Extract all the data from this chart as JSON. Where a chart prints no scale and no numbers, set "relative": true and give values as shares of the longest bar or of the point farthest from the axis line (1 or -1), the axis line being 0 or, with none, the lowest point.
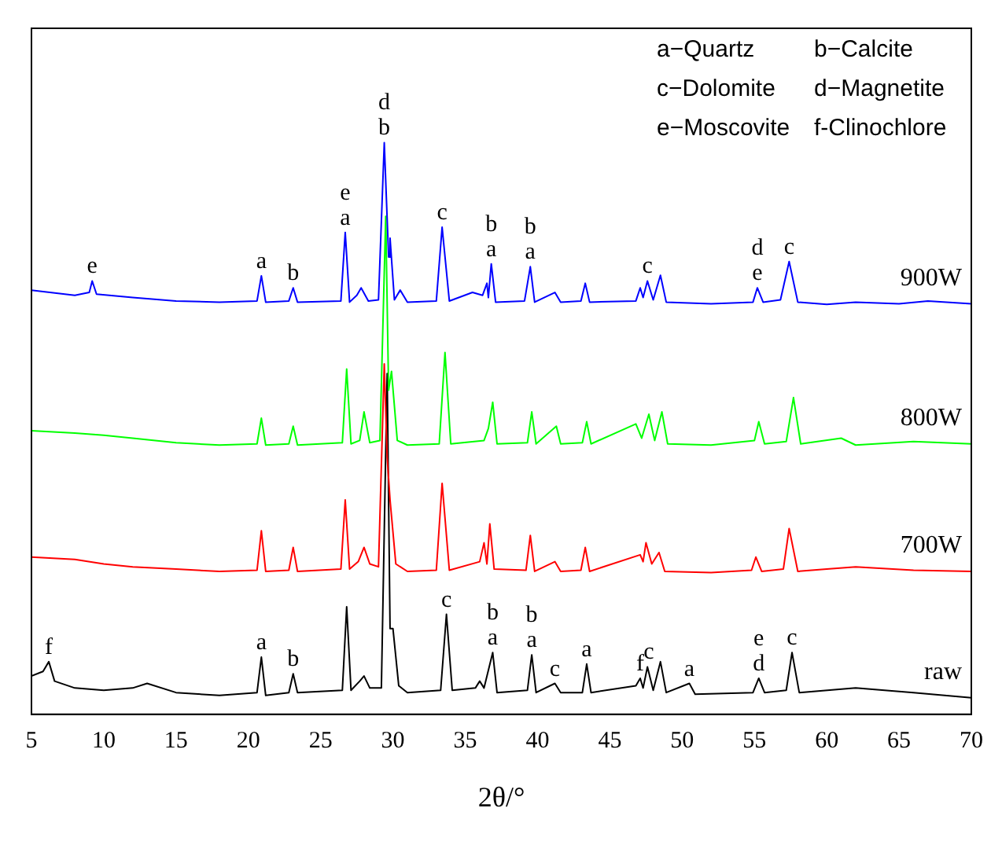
{
  "chart_data": {
    "type": "line",
    "relative": true,
    "xlabel": "2θ/°",
    "xlim": [
      5,
      70
    ],
    "xticks": [
      5,
      10,
      15,
      20,
      25,
      30,
      35,
      40,
      45,
      50,
      55,
      60,
      65,
      70
    ],
    "grid": false,
    "legend": false,
    "marker": "none",
    "line_style": "solid",
    "series": [
      {
        "name": "900W",
        "color": "#0000ff",
        "x": [
          5,
          8,
          9.0,
          9.2,
          9.5,
          12,
          15,
          18,
          20.6,
          20.9,
          21.2,
          22.8,
          23.1,
          23.4,
          26.4,
          26.7,
          27.0,
          27.5,
          27.8,
          28.3,
          29.0,
          29.4,
          29.7,
          29.8,
          30.1,
          30.5,
          31,
          33.0,
          33.4,
          33.9,
          35.5,
          36.2,
          36.5,
          36.6,
          36.8,
          37.1,
          39.1,
          39.5,
          39.8,
          41.2,
          41.6,
          43.0,
          43.3,
          43.6,
          46.8,
          47.1,
          47.3,
          47.6,
          48.0,
          48.5,
          48.9,
          52,
          54.9,
          55.2,
          55.6,
          56.8,
          57.4,
          58.0,
          60,
          62,
          65,
          67,
          70
        ],
        "values": [
          0.742,
          0.733,
          0.738,
          0.758,
          0.735,
          0.729,
          0.723,
          0.721,
          0.723,
          0.767,
          0.721,
          0.723,
          0.746,
          0.721,
          0.723,
          0.843,
          0.721,
          0.733,
          0.746,
          0.723,
          0.725,
          1.0,
          0.8,
          0.833,
          0.725,
          0.742,
          0.721,
          0.723,
          0.852,
          0.723,
          0.738,
          0.733,
          0.754,
          0.729,
          0.788,
          0.721,
          0.723,
          0.783,
          0.721,
          0.738,
          0.721,
          0.723,
          0.754,
          0.721,
          0.723,
          0.746,
          0.729,
          0.758,
          0.725,
          0.768,
          0.721,
          0.718,
          0.721,
          0.746,
          0.721,
          0.725,
          0.792,
          0.721,
          0.717,
          0.721,
          0.718,
          0.723,
          0.718
        ]
      },
      {
        "name": "800W",
        "color": "#00ff00",
        "x": [
          5,
          8,
          10,
          12,
          15,
          18,
          20.6,
          20.9,
          21.2,
          22.8,
          23.1,
          23.4,
          26.5,
          26.8,
          27.1,
          27.7,
          28.0,
          28.4,
          29.1,
          29.5,
          29.7,
          29.9,
          30.3,
          31,
          33.2,
          33.6,
          34.0,
          36.3,
          36.6,
          36.9,
          37.2,
          39.3,
          39.6,
          39.9,
          41.3,
          41.6,
          43.1,
          43.4,
          43.7,
          46.8,
          47.2,
          47.7,
          48.1,
          48.6,
          49.0,
          52,
          55.0,
          55.3,
          55.7,
          57.2,
          57.7,
          58.2,
          61,
          62,
          66,
          70
        ],
        "values": [
          0.496,
          0.492,
          0.488,
          0.483,
          0.475,
          0.471,
          0.473,
          0.518,
          0.471,
          0.473,
          0.504,
          0.471,
          0.475,
          0.604,
          0.473,
          0.479,
          0.529,
          0.475,
          0.479,
          0.871,
          0.567,
          0.6,
          0.479,
          0.471,
          0.473,
          0.633,
          0.473,
          0.479,
          0.5,
          0.546,
          0.473,
          0.475,
          0.529,
          0.473,
          0.504,
          0.473,
          0.475,
          0.512,
          0.473,
          0.508,
          0.483,
          0.525,
          0.479,
          0.529,
          0.473,
          0.471,
          0.479,
          0.512,
          0.473,
          0.477,
          0.554,
          0.473,
          0.483,
          0.471,
          0.477,
          0.473
        ]
      },
      {
        "name": "700W",
        "color": "#ff0000",
        "x": [
          5,
          8,
          10,
          12,
          15,
          18,
          20.6,
          20.9,
          21.2,
          22.8,
          23.1,
          23.4,
          26.4,
          26.7,
          27.0,
          27.6,
          28.0,
          28.4,
          29.0,
          29.4,
          29.6,
          29.8,
          30.2,
          31,
          33.0,
          33.4,
          33.9,
          36.0,
          36.3,
          36.5,
          36.7,
          37.0,
          39.2,
          39.5,
          39.8,
          41.2,
          41.6,
          43.0,
          43.3,
          43.6,
          47.1,
          47.3,
          47.5,
          47.9,
          48.4,
          48.8,
          52,
          54.8,
          55.1,
          55.5,
          57.0,
          57.4,
          58.0,
          60,
          62,
          66,
          70
        ],
        "values": [
          0.275,
          0.271,
          0.263,
          0.258,
          0.254,
          0.25,
          0.252,
          0.321,
          0.25,
          0.252,
          0.292,
          0.25,
          0.254,
          0.375,
          0.254,
          0.267,
          0.292,
          0.263,
          0.258,
          0.613,
          0.45,
          0.375,
          0.263,
          0.25,
          0.252,
          0.404,
          0.252,
          0.267,
          0.3,
          0.263,
          0.333,
          0.254,
          0.252,
          0.313,
          0.25,
          0.267,
          0.25,
          0.252,
          0.292,
          0.25,
          0.279,
          0.267,
          0.3,
          0.263,
          0.283,
          0.25,
          0.248,
          0.252,
          0.275,
          0.25,
          0.254,
          0.325,
          0.25,
          0.254,
          0.258,
          0.252,
          0.25
        ]
      },
      {
        "name": "raw",
        "color": "#000000",
        "x": [
          5,
          5.8,
          6.2,
          6.6,
          8,
          10,
          12,
          13,
          15,
          18,
          20.6,
          20.9,
          21.2,
          22.8,
          23.1,
          23.4,
          26.5,
          26.8,
          27.1,
          27.7,
          28.0,
          28.4,
          29.2,
          29.6,
          29.8,
          30.0,
          30.4,
          31,
          33.3,
          33.7,
          34.1,
          35.7,
          36.0,
          36.3,
          36.9,
          37.2,
          39.3,
          39.6,
          39.9,
          41.2,
          41.6,
          43.1,
          43.4,
          43.7,
          46.8,
          47.1,
          47.3,
          47.6,
          48.0,
          48.5,
          48.9,
          50.5,
          50.9,
          54.9,
          55.3,
          55.7,
          57.2,
          57.6,
          58.1,
          62,
          66,
          70
        ],
        "values": [
          0.067,
          0.075,
          0.092,
          0.058,
          0.046,
          0.042,
          0.046,
          0.054,
          0.038,
          0.033,
          0.038,
          0.1,
          0.033,
          0.038,
          0.071,
          0.038,
          0.042,
          0.188,
          0.042,
          0.058,
          0.067,
          0.046,
          0.046,
          0.596,
          0.15,
          0.15,
          0.05,
          0.038,
          0.042,
          0.175,
          0.042,
          0.046,
          0.058,
          0.046,
          0.108,
          0.038,
          0.042,
          0.104,
          0.038,
          0.054,
          0.038,
          0.038,
          0.088,
          0.038,
          0.05,
          0.063,
          0.046,
          0.083,
          0.042,
          0.092,
          0.038,
          0.054,
          0.035,
          0.038,
          0.063,
          0.038,
          0.042,
          0.108,
          0.038,
          0.046,
          0.038,
          0.029
        ]
      }
    ],
    "annotations": [
      "a−Quartz",
      "b−Calcite",
      "c−Dolomite",
      "d−Magnetite",
      "e−Moscovite",
      "f-Clinochlore",
      {
        "text": "e",
        "x": 9.2,
        "y": 0.758
      },
      {
        "text": "a",
        "x": 20.9,
        "y": 0.767
      },
      {
        "text": "b",
        "x": 23.1,
        "y": 0.746
      },
      {
        "text": "e\na",
        "x": 26.7,
        "y": 0.843
      },
      {
        "text": "d\nb",
        "x": 29.4,
        "y": 1.0
      },
      {
        "text": "c",
        "x": 33.4,
        "y": 0.852
      },
      {
        "text": "b\na",
        "x": 36.8,
        "y": 0.788
      },
      {
        "text": "b\na",
        "x": 39.5,
        "y": 0.783
      },
      {
        "text": "c",
        "x": 47.6,
        "y": 0.758
      },
      {
        "text": "d\ne",
        "x": 55.2,
        "y": 0.746
      },
      {
        "text": "c",
        "x": 57.4,
        "y": 0.792
      },
      {
        "text": "f",
        "x": 6.2,
        "y": 0.092
      },
      {
        "text": "a",
        "x": 20.9,
        "y": 0.1
      },
      {
        "text": "b",
        "x": 23.1,
        "y": 0.071
      },
      {
        "text": "c",
        "x": 33.7,
        "y": 0.175
      },
      {
        "text": "b\na",
        "x": 36.9,
        "y": 0.108
      },
      {
        "text": "b\na",
        "x": 39.6,
        "y": 0.104
      },
      {
        "text": "c",
        "x": 41.2,
        "y": 0.054
      },
      {
        "text": "a",
        "x": 43.4,
        "y": 0.088
      },
      {
        "text": "f",
        "x": 47.1,
        "y": 0.063
      },
      {
        "text": "c",
        "x": 47.7,
        "y": 0.083
      },
      {
        "text": "a",
        "x": 50.5,
        "y": 0.054
      },
      {
        "text": "e\nd",
        "x": 55.3,
        "y": 0.063
      },
      {
        "text": "c",
        "x": 57.6,
        "y": 0.108
      }
    ]
  }
}
